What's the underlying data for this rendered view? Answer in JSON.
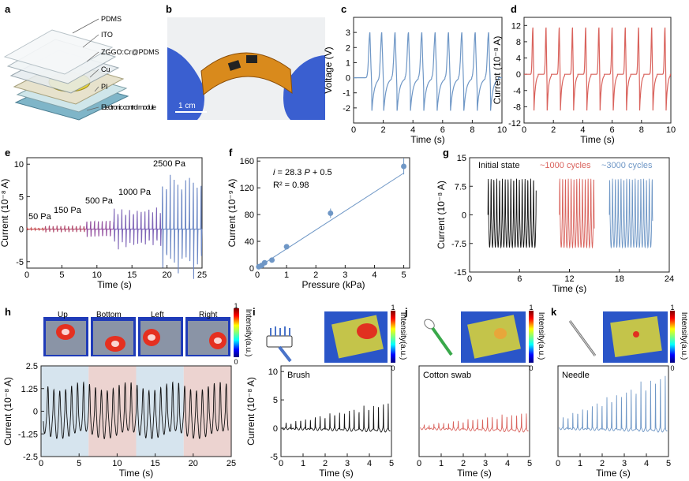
{
  "colors": {
    "blue": "#6f97c6",
    "red": "#d9625c",
    "black": "#111111",
    "purple": "#7a4fa0",
    "bgBlue": "#d6e4ee",
    "bgRed": "#ecd3d0",
    "fit": "#6f97c6"
  },
  "panel_labels": {
    "a": "a",
    "b": "b",
    "c": "c",
    "d": "d",
    "e": "e",
    "f": "f",
    "g": "g",
    "h": "h",
    "i": "i",
    "j": "j",
    "k": "k"
  },
  "panel_a": {
    "layers": [
      "PDMS",
      "ITO",
      "ZGGO:Cr@PDMS",
      "Cu",
      "PI",
      "Electronic control module"
    ]
  },
  "panel_b": {
    "scale": "1 cm"
  },
  "panel_c": {
    "ylabel": "Voltage (V)",
    "xlabel": "Time (s)"
  },
  "panel_d": {
    "ylabel": "Current (10⁻⁸ A)",
    "xlabel": "Time (s)"
  },
  "panel_e": {
    "ylabel": "Current (10⁻⁸ A)",
    "xlabel": "Time (s)",
    "annotations": [
      "50 Pa",
      "150 Pa",
      "500 Pa",
      "1000 Pa",
      "2500 Pa"
    ]
  },
  "panel_f": {
    "ylabel": "Current (10⁻⁹ A)",
    "xlabel": "Pressure (kPa)",
    "eq_i": "i",
    "eq_rest": " = 28.3 ",
    "eq_p": "P",
    "eq_tail": " + 0.5",
    "r2": "R² = 0.98"
  },
  "panel_g": {
    "ylabel": "Current (10⁻⁸ A)",
    "xlabel": "Time (s)",
    "legend": [
      "Initial state",
      "~1000 cycles",
      "~3000 cycles"
    ]
  },
  "panel_h": {
    "ylabel": "Current (10⁻⁸ A)",
    "xlabel": "Time (s)",
    "maps": [
      "Up",
      "Bottom",
      "Left",
      "Right"
    ],
    "cbar_label": "Intensity(a.u.)",
    "cbar_max": "1",
    "cbar_min": "0"
  },
  "panel_i": {
    "ylabel": "Current (10⁻⁸ A)",
    "xlabel": "Time (s)",
    "tool": "Brush",
    "cbar_label": "Intensity(a.u.)",
    "cbar_max": "1",
    "cbar_min": "0"
  },
  "panel_j": {
    "xlabel": "Time (s)",
    "tool": "Cotton swab",
    "cbar_label": "Intensity(a.u.)",
    "cbar_max": "1",
    "cbar_min": "0"
  },
  "panel_k": {
    "xlabel": "Time (s)",
    "tool": "Needle",
    "cbar_label": "Intensity(a.u.)",
    "cbar_max": "1",
    "cbar_min": "0"
  },
  "chart_data": [
    {
      "id": "c",
      "type": "line",
      "xlabel": "Time (s)",
      "ylabel": "Voltage (V)",
      "xlim": [
        0,
        10
      ],
      "ylim": [
        -3,
        4
      ],
      "xticks": [
        "0",
        "2",
        "4",
        "6",
        "8",
        "10"
      ],
      "yticks": [
        "-2",
        "-1",
        "0",
        "1",
        "2",
        "3"
      ],
      "series": [
        {
          "peak_times": [
            1.1,
            1.9,
            2.8,
            3.7,
            4.6,
            5.5,
            6.4,
            7.3,
            8.2,
            9.1
          ],
          "peak_value": 3.0,
          "trough_value": -2.2,
          "baseline": 0.0
        }
      ]
    },
    {
      "id": "d",
      "type": "line",
      "xlabel": "Time (s)",
      "ylabel": "Current (10⁻⁸ A)",
      "xlim": [
        0,
        10
      ],
      "ylim": [
        -12,
        14
      ],
      "xticks": [
        "0",
        "2",
        "4",
        "6",
        "8",
        "10"
      ],
      "yticks": [
        "-12",
        "-8",
        "-4",
        "0",
        "4",
        "8",
        "12"
      ],
      "series": [
        {
          "peak_times": [
            0.6,
            1.5,
            2.4,
            3.3,
            4.2,
            5.1,
            6.0,
            6.9,
            7.8,
            8.7,
            9.6
          ],
          "peak_value": 11.5,
          "trough_value": -9.5,
          "baseline": 0.0
        }
      ]
    },
    {
      "id": "e",
      "type": "line",
      "xlabel": "Time (s)",
      "ylabel": "Current (10⁻⁸ A)",
      "xlim": [
        0,
        25
      ],
      "ylim": [
        -6,
        11
      ],
      "xticks": [
        "0",
        "5",
        "10",
        "15",
        "20",
        "25"
      ],
      "yticks": [
        "-5",
        "0",
        "5",
        "10"
      ],
      "segments": [
        {
          "label": "50 Pa",
          "t": [
            0,
            2.6
          ],
          "peak": 0.2,
          "trough": -0.15
        },
        {
          "label": "150 Pa",
          "t": [
            2.6,
            8.5
          ],
          "peak": 0.6,
          "trough": -0.5
        },
        {
          "label": "500 Pa",
          "t": [
            8.5,
            12.4
          ],
          "peak": 1.5,
          "trough": -1.3
        },
        {
          "label": "1000 Pa",
          "t": [
            12.4,
            19.3
          ],
          "peak": 3.5,
          "trough": -2.8
        },
        {
          "label": "2500 Pa",
          "t": [
            19.3,
            25
          ],
          "peak": 8.8,
          "trough": -5.6
        }
      ]
    },
    {
      "id": "f",
      "type": "scatter",
      "xlabel": "Pressure (kPa)",
      "ylabel": "Current (10⁻⁹ A)",
      "xlim": [
        0,
        5.2
      ],
      "ylim": [
        0,
        165
      ],
      "xticks": [
        "0",
        "1",
        "2",
        "3",
        "4",
        "5"
      ],
      "yticks": [
        "0",
        "40",
        "80",
        "120",
        "160"
      ],
      "x": [
        0.05,
        0.15,
        0.5,
        0.25,
        1.0,
        2.5,
        5.0
      ],
      "y": [
        2,
        4,
        12,
        8,
        32,
        82,
        152
      ],
      "err": [
        1,
        1,
        2,
        1.5,
        4,
        7,
        12
      ],
      "fit": {
        "slope": 28.3,
        "intercept": 0.5
      }
    },
    {
      "id": "g",
      "type": "line",
      "xlabel": "Time (s)",
      "ylabel": "Current (10⁻⁸ A)",
      "xlim": [
        0,
        24
      ],
      "ylim": [
        -15,
        15
      ],
      "xticks": [
        "0",
        "6",
        "12",
        "18",
        "24"
      ],
      "yticks": [
        "-15",
        "-7.5",
        "0",
        "7.5",
        "15"
      ],
      "series": [
        {
          "name": "Initial state",
          "t": [
            2.2,
            8.0
          ],
          "amp": 9.5
        },
        {
          "name": "~1000 cycles",
          "t": [
            10.8,
            15.0
          ],
          "amp": 9.5
        },
        {
          "name": "~3000 cycles",
          "t": [
            16.8,
            22.0
          ],
          "amp": 9.5
        }
      ]
    },
    {
      "id": "h",
      "type": "line",
      "xlabel": "Time (s)",
      "ylabel": "Current (10⁻⁸ A)",
      "xlim": [
        0,
        25
      ],
      "ylim": [
        -2.5,
        2.5
      ],
      "xticks": [
        "0",
        "5",
        "10",
        "15",
        "20",
        "25"
      ],
      "yticks": [
        "-2.5",
        "-1.25",
        "0",
        "1.25",
        "2.5"
      ],
      "series": [
        {
          "amp": 1.6,
          "cycles_per_section": 8
        }
      ],
      "bands": [
        {
          "t": [
            0,
            6.25
          ],
          "color": "blue"
        },
        {
          "t": [
            6.25,
            12.5
          ],
          "color": "red"
        },
        {
          "t": [
            12.5,
            18.75
          ],
          "color": "blue"
        },
        {
          "t": [
            18.75,
            25
          ],
          "color": "red"
        }
      ]
    },
    {
      "id": "i",
      "type": "line",
      "xlabel": "Time (s)",
      "ylabel": "Current (10⁻⁸ A)",
      "xlim": [
        0,
        5
      ],
      "ylim": [
        -5,
        11
      ],
      "xticks": [
        "0",
        "1",
        "2",
        "3",
        "4",
        "5"
      ],
      "yticks": [
        "-5",
        "0",
        "5",
        "10"
      ],
      "series": [
        {
          "name": "Brush",
          "max_peak": 5.0
        }
      ]
    },
    {
      "id": "j",
      "type": "line",
      "xlabel": "Time (s)",
      "xlim": [
        0,
        5
      ],
      "ylim": [
        -5,
        11
      ],
      "xticks": [
        "0",
        "1",
        "2",
        "3",
        "4",
        "5"
      ],
      "series": [
        {
          "name": "Cotton swab",
          "max_peak": 3.0
        }
      ]
    },
    {
      "id": "k",
      "type": "line",
      "xlabel": "Time (s)",
      "xlim": [
        0,
        5
      ],
      "ylim": [
        -5,
        11
      ],
      "xticks": [
        "0",
        "1",
        "2",
        "3",
        "4",
        "5"
      ],
      "series": [
        {
          "name": "Needle",
          "max_peak": 10.5
        }
      ]
    }
  ]
}
